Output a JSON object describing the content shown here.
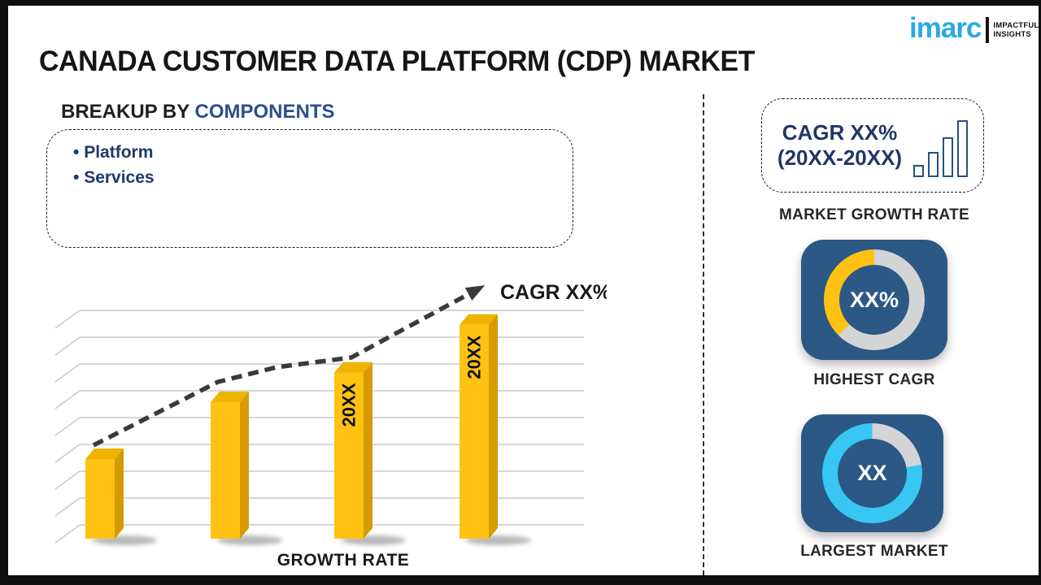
{
  "page": {
    "title": "CANADA CUSTOMER DATA PLATFORM (CDP) MARKET"
  },
  "logo": {
    "brand": "imarc",
    "tagline_line1": "IMPACTFUL",
    "tagline_line2": "INSIGHTS",
    "brand_color": "#2AAAE1"
  },
  "breakup": {
    "heading_prefix": "BREAKUP BY ",
    "heading_highlight": "COMPONENTS",
    "items": [
      "Platform",
      "Services"
    ]
  },
  "chart_data": {
    "type": "bar",
    "title": "",
    "categories": [
      "",
      "",
      "20XX",
      "20XX"
    ],
    "values": [
      35,
      60,
      73,
      94
    ],
    "ylim": [
      0,
      100
    ],
    "grid": true,
    "axis_note": "schematic chart - no numeric axis labels shown",
    "bar_front_color": "#FFC213",
    "bar_side_color": "#D69B00",
    "bar_top_color": "#EFB400",
    "trend_label": "CAGR XX%",
    "trend_color": "#3A3A3A",
    "xlabel": "GROWTH RATE"
  },
  "sidebar": {
    "growth_box": {
      "line1": "CAGR XX%",
      "line2": "(20XX-20XX)"
    },
    "growth_label": "MARKET GROWTH RATE",
    "donuts": [
      {
        "value_label": "XX%",
        "caption": "HIGHEST CAGR",
        "accent_color": "#FFC213",
        "rest_color": "#D3D4D6",
        "split_deg": 225
      },
      {
        "value_label": "XX",
        "caption": "LARGEST MARKET",
        "accent_color": "#38C6F4",
        "rest_color": "#D3D4D6",
        "split_deg": 80
      }
    ]
  }
}
